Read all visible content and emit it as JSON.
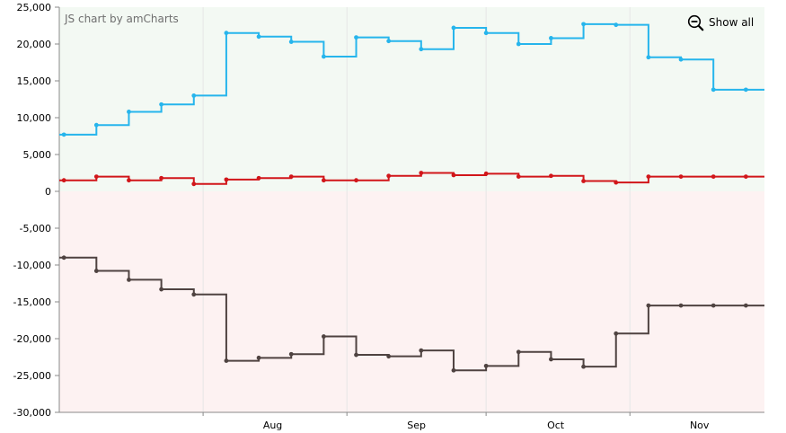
{
  "credit": "JS chart by amCharts",
  "controls": {
    "show_all_label": "Show all",
    "zoom_icon": "zoom-out-icon"
  },
  "colors": {
    "positive_fill": "#f3f9f3",
    "negative_fill": "#fdf2f2",
    "series_blue": "#26b5ec",
    "series_red": "#d1161a",
    "series_brown": "#4f4341",
    "grid": "#e6e6e6",
    "axis": "#8a8a8a",
    "text": "#000000"
  },
  "chart_data": {
    "type": "line",
    "step": true,
    "x_unit": "date",
    "x_axis": {
      "min": "2013-07-01",
      "max": "2013-11-30",
      "labels": [
        {
          "date": "2013-08-01",
          "label": "Aug"
        },
        {
          "date": "2013-09-01",
          "label": "Sep"
        },
        {
          "date": "2013-10-01",
          "label": "Oct"
        },
        {
          "date": "2013-11-01",
          "label": "Nov"
        }
      ]
    },
    "y_axis": {
      "min": -30000,
      "max": 25000,
      "step": 5000,
      "labels": [
        "25,000",
        "20,000",
        "15,000",
        "10,000",
        "5,000",
        "0",
        "-5,000",
        "-10,000",
        "-15,000",
        "-20,000",
        "-25,000",
        "-30,000"
      ]
    },
    "grid": true,
    "dates": [
      "2013-07-02",
      "2013-07-09",
      "2013-07-16",
      "2013-07-23",
      "2013-07-30",
      "2013-08-06",
      "2013-08-13",
      "2013-08-20",
      "2013-08-27",
      "2013-09-03",
      "2013-09-10",
      "2013-09-17",
      "2013-09-24",
      "2013-10-01",
      "2013-10-08",
      "2013-10-15",
      "2013-10-22",
      "2013-10-29",
      "2013-11-05",
      "2013-11-12",
      "2013-11-19",
      "2013-11-26"
    ],
    "series": [
      {
        "color": "#26b5ec",
        "values": [
          7700,
          9000,
          10800,
          11800,
          13000,
          21500,
          21000,
          20300,
          18300,
          20900,
          20400,
          19300,
          22200,
          21500,
          20000,
          20800,
          22700,
          22600,
          18200,
          17900,
          13800,
          13800
        ]
      },
      {
        "color": "#d1161a",
        "values": [
          1500,
          2000,
          1500,
          1800,
          1000,
          1600,
          1800,
          2000,
          1500,
          1500,
          2100,
          2500,
          2200,
          2400,
          2000,
          2100,
          1400,
          1200,
          2000,
          2000,
          2000,
          2000
        ]
      },
      {
        "color": "#4f4341",
        "values": [
          -9000,
          -10800,
          -12000,
          -13300,
          -14000,
          -23000,
          -22600,
          -22100,
          -19700,
          -22200,
          -22400,
          -21600,
          -24300,
          -23700,
          -21800,
          -22800,
          -23800,
          -19300,
          -15500,
          -15500,
          -15500,
          -15500
        ]
      }
    ]
  }
}
